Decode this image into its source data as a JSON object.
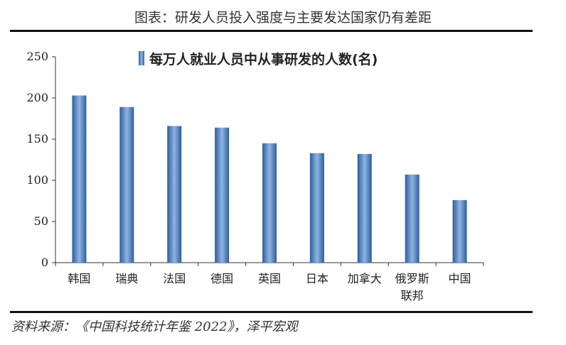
{
  "figure": {
    "title": "图表：研发人员投入强度与主要发达国家仍有差距",
    "source": "资料来源：《中国科技统计年鉴 2022》，泽平宏观"
  },
  "colors": {
    "bar": "#4a7fc1",
    "bar_dark": "#2e5e9e",
    "bar_light": "#8fb4e3",
    "axis": "#333333"
  },
  "chart_data": {
    "type": "bar",
    "categories": [
      "韩国",
      "瑞典",
      "法国",
      "德国",
      "英国",
      "日本",
      "加拿大",
      "俄罗斯联邦",
      "中国"
    ],
    "category_lines": [
      [
        "韩国"
      ],
      [
        "瑞典"
      ],
      [
        "法国"
      ],
      [
        "德国"
      ],
      [
        "英国"
      ],
      [
        "日本"
      ],
      [
        "加拿大"
      ],
      [
        "俄罗斯",
        "联邦"
      ],
      [
        "中国"
      ]
    ],
    "series": [
      {
        "name": "每万人就业人员中从事研发的人数(名)",
        "values": [
          203,
          189,
          166,
          164,
          145,
          133,
          132,
          107,
          76
        ]
      }
    ],
    "ylim": [
      0,
      250
    ],
    "yticks": [
      0,
      50,
      100,
      150,
      200,
      250
    ],
    "legend_position": "top-center",
    "grid": false
  }
}
